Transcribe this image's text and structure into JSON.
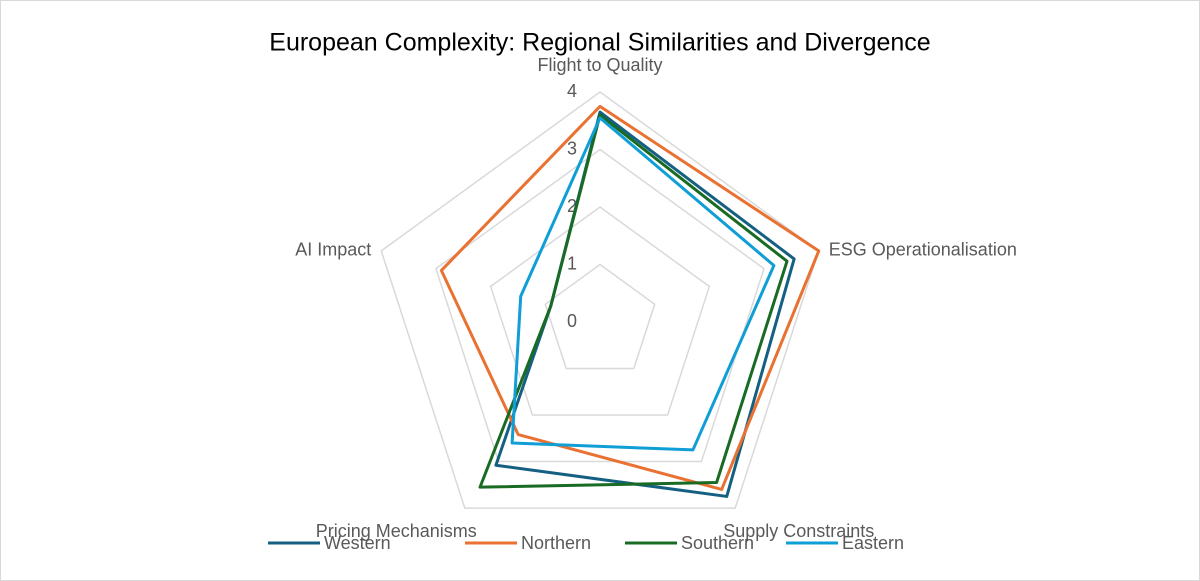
{
  "chart_data": {
    "type": "radar",
    "title": "European Complexity: Regional Similarities and Divergence",
    "categories": [
      "Flight to Quality",
      "ESG Operationalisation",
      "Supply Constraints",
      "Pricing Mechanisms",
      "AI Impact"
    ],
    "series": [
      {
        "name": "Western",
        "color": "#156082",
        "values": [
          3.65,
          3.55,
          3.75,
          3.08,
          0.9
        ]
      },
      {
        "name": "Northern",
        "color": "#e97132",
        "values": [
          3.75,
          4.0,
          3.6,
          2.42,
          2.9
        ]
      },
      {
        "name": "Southern",
        "color": "#196b24",
        "values": [
          3.6,
          3.42,
          3.45,
          3.55,
          0.9
        ]
      },
      {
        "name": "Eastern",
        "color": "#0f9ed5",
        "values": [
          3.55,
          3.18,
          2.75,
          2.6,
          1.45
        ]
      }
    ],
    "rlim": [
      0,
      4
    ],
    "rticks": [
      0,
      1,
      2,
      3,
      4
    ],
    "grid": true,
    "legend": "bottom"
  }
}
